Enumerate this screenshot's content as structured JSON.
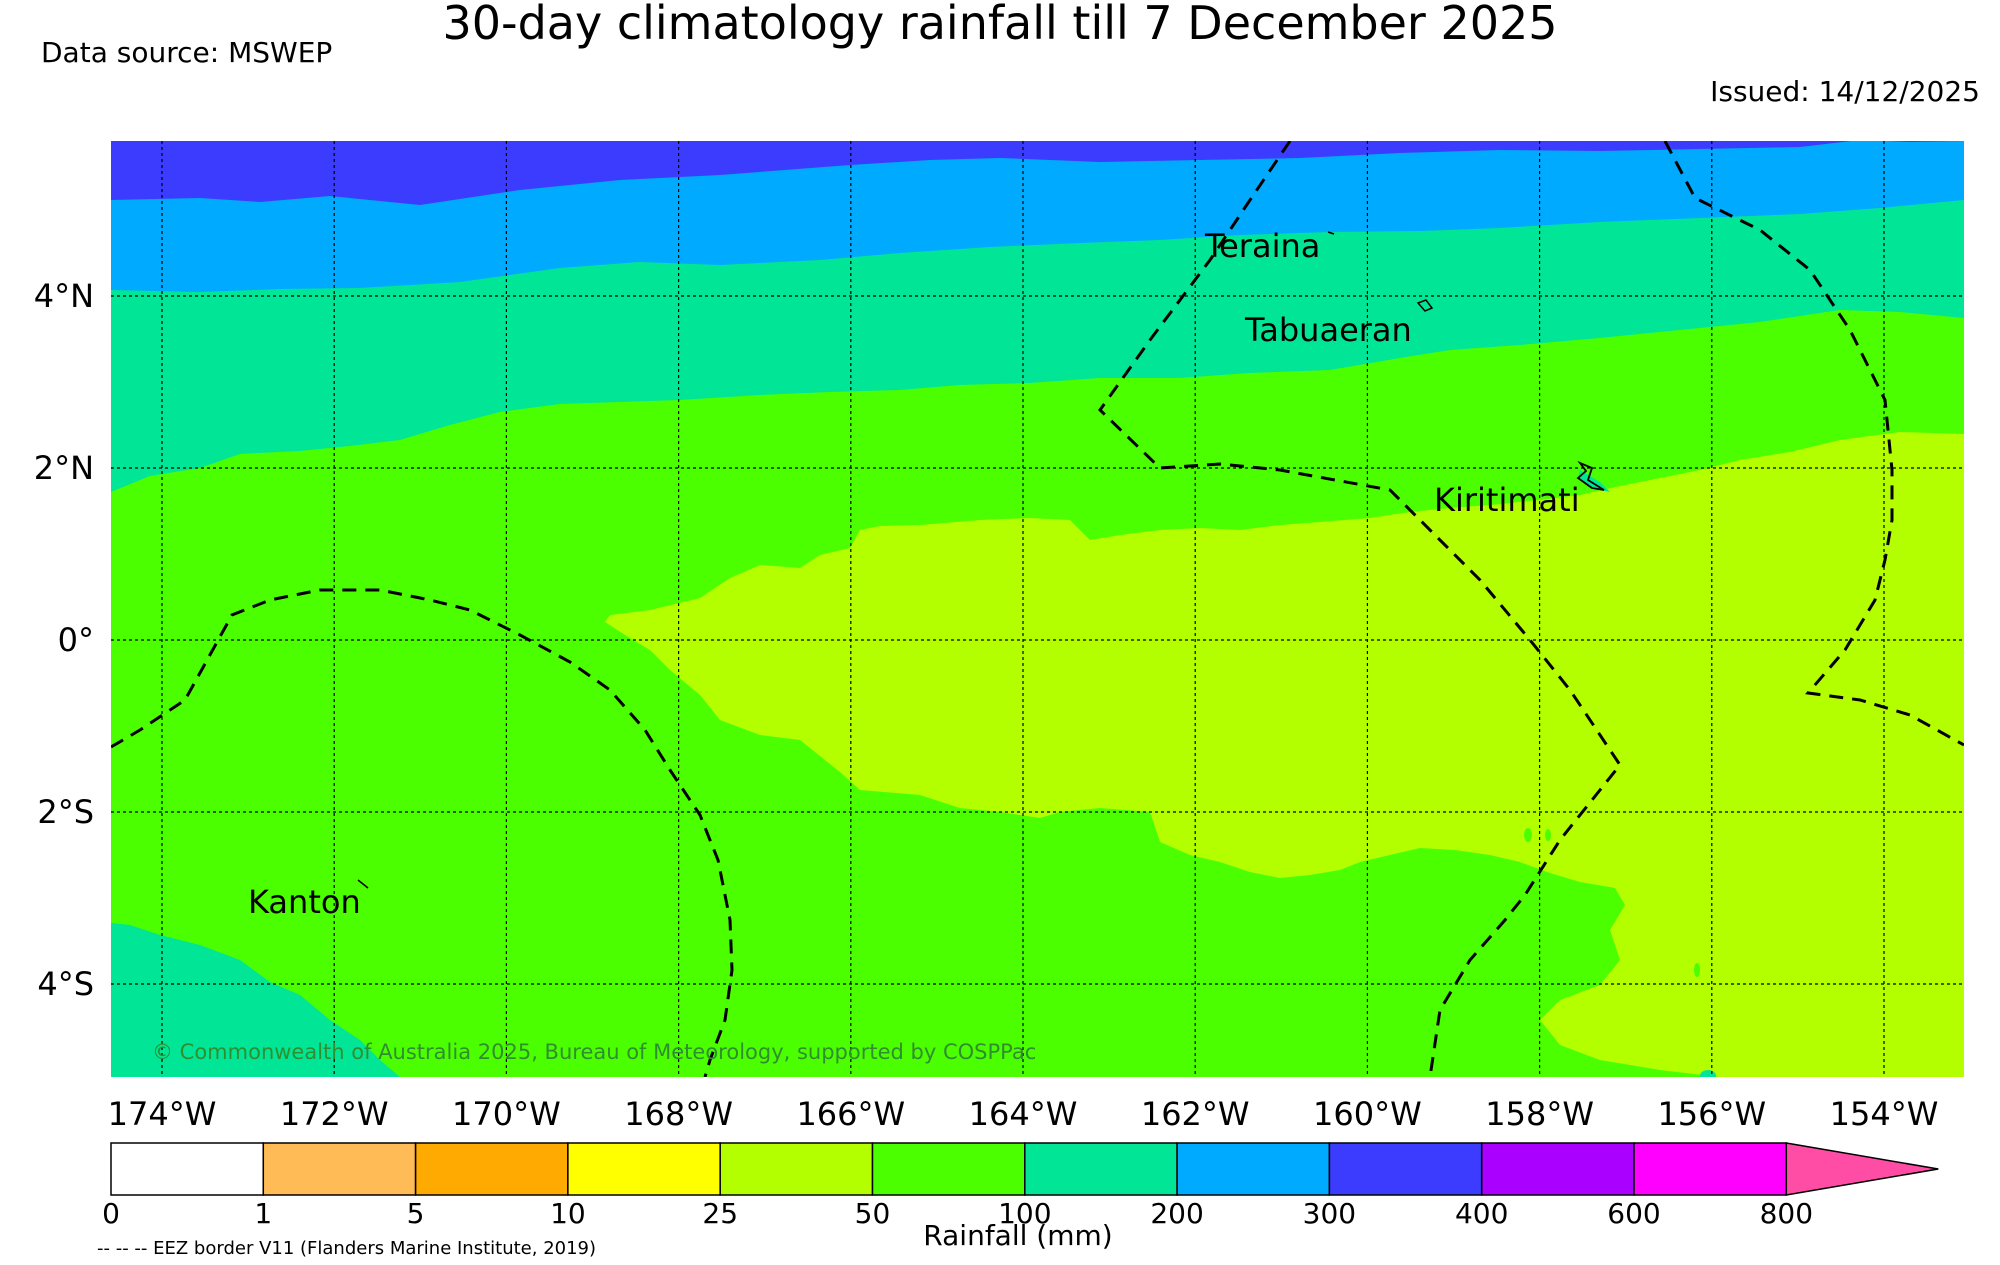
{
  "title": "30-day climatology rainfall till 7 December 2025",
  "data_source": "Data source: MSWEP",
  "issued": "Issued: 14/12/2025",
  "copyright": "© Commonwealth of Australia 2025, Bureau of Meteorology, supported by COSPPac",
  "eez_note": "-- -- -- EEZ border V11 (Flanders Marine Institute, 2019)",
  "lon_ticks": [
    "174°W",
    "172°W",
    "170°W",
    "168°W",
    "166°W",
    "164°W",
    "162°W",
    "160°W",
    "158°W",
    "156°W",
    "154°W"
  ],
  "lat_ticks": [
    "4°N",
    "2°N",
    "0°",
    "2°S",
    "4°S"
  ],
  "places": {
    "teraina": "Teraina",
    "tabuaeran": "Tabuaeran",
    "kiritimati": "Kiritimati",
    "kanton": "Kanton"
  },
  "colorbar": {
    "label": "Rainfall (mm)",
    "ticks": [
      "0",
      "1",
      "5",
      "10",
      "25",
      "50",
      "100",
      "200",
      "300",
      "400",
      "600",
      "800"
    ],
    "colors": [
      "#ffffff",
      "#ffbb55",
      "#ffaa00",
      "#ffff00",
      "#b3ff00",
      "#4cff00",
      "#00e696",
      "#00aaff",
      "#3c3cff",
      "#aa00ff",
      "#ff00ff",
      "#ff4ca5"
    ]
  },
  "legend_colors": {
    "r25_50": "#b3ff00",
    "r50_100": "#4cff00",
    "r100_200": "#00e696",
    "r200_300": "#00aaff",
    "r300_400": "#3c3cff"
  }
}
